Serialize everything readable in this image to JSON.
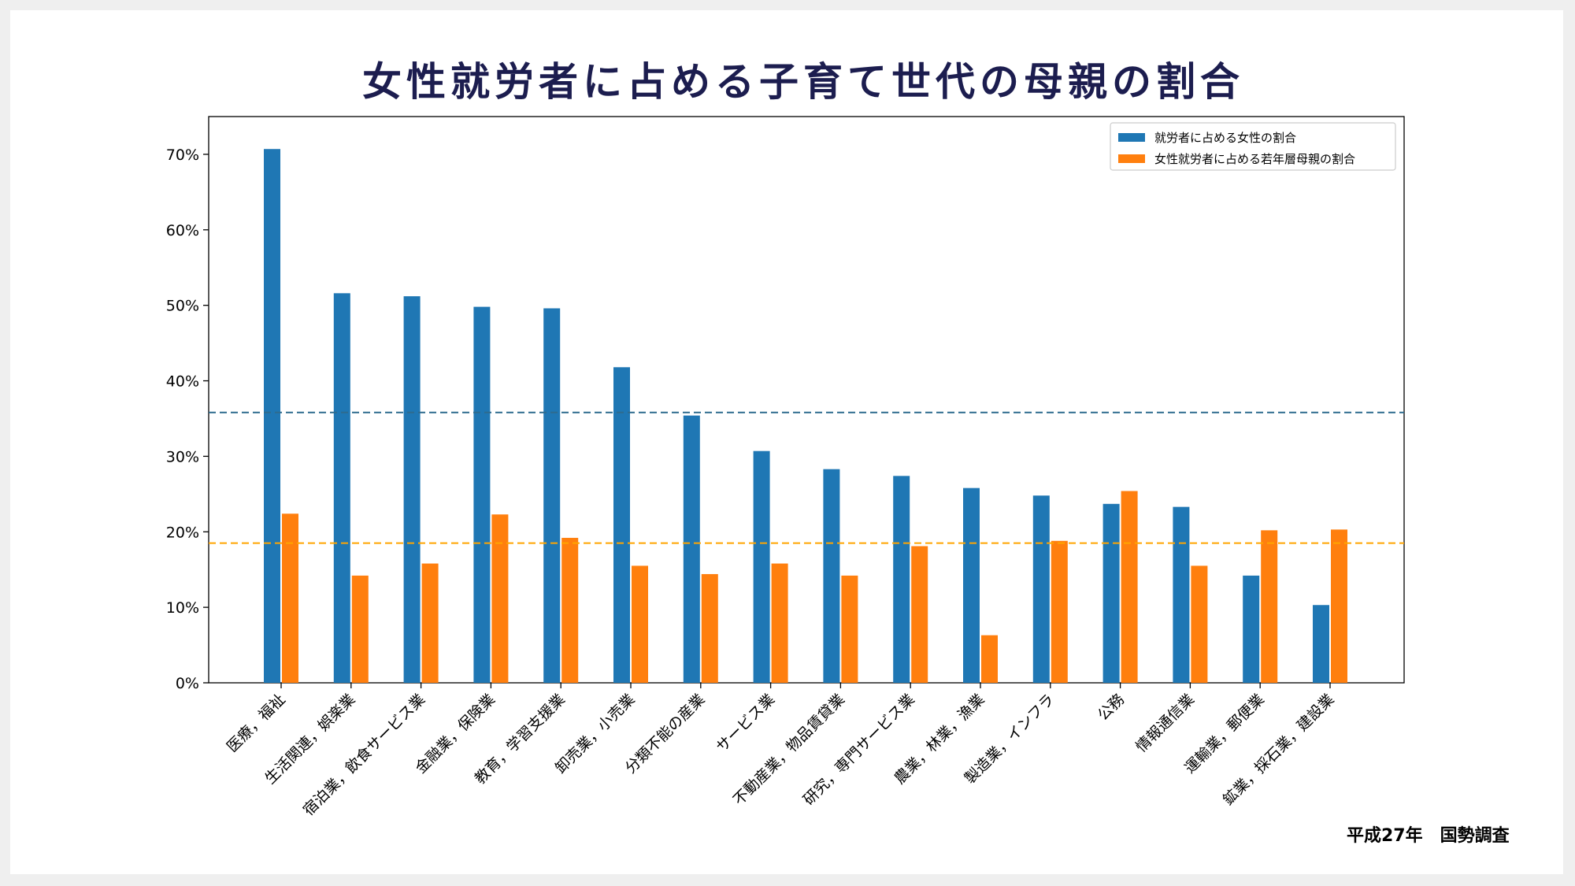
{
  "slide": {
    "title": "女性就労者に占める子育て世代の母親の割合",
    "source": "平成27年　国勢調査"
  },
  "chart_data": {
    "type": "bar",
    "categories": [
      "医療，福祉",
      "生活関連，娯楽業",
      "宿泊業，飲食サービス業",
      "金融業，保険業",
      "教育，学習支援業",
      "卸売業，小売業",
      "分類不能の産業",
      "サービス業",
      "不動産業，物品賃貸業",
      "研究，専門サービス業",
      "農業，林業，漁業",
      "製造業，インフラ",
      "公務",
      "情報通信業",
      "運輸業，郵便業",
      "鉱業，採石業，建設業"
    ],
    "series": [
      {
        "name": "就労者に占める女性の割合",
        "color": "#1f77b4",
        "values": [
          70.7,
          51.6,
          51.2,
          49.8,
          49.6,
          41.8,
          35.4,
          30.7,
          28.3,
          27.4,
          25.8,
          24.8,
          23.7,
          23.3,
          14.2,
          10.3
        ]
      },
      {
        "name": "女性就労者に占める若年層母親の割合",
        "color": "#ff7f0e",
        "values": [
          22.4,
          14.2,
          15.8,
          22.3,
          19.2,
          15.5,
          14.4,
          15.8,
          14.2,
          18.1,
          6.3,
          18.8,
          25.4,
          15.5,
          20.2,
          20.3
        ]
      }
    ],
    "reference_lines": [
      {
        "value": 35.8,
        "color": "#2e6b8e"
      },
      {
        "value": 18.5,
        "color": "#ffa500"
      }
    ],
    "ylim": [
      0,
      75
    ],
    "yticks": [
      0,
      10,
      20,
      30,
      40,
      50,
      60,
      70
    ],
    "ytick_labels": [
      "0%",
      "10%",
      "20%",
      "30%",
      "40%",
      "50%",
      "60%",
      "70%"
    ],
    "xlabel": "",
    "ylabel": "",
    "grid": false,
    "legend_position": "top-right"
  }
}
